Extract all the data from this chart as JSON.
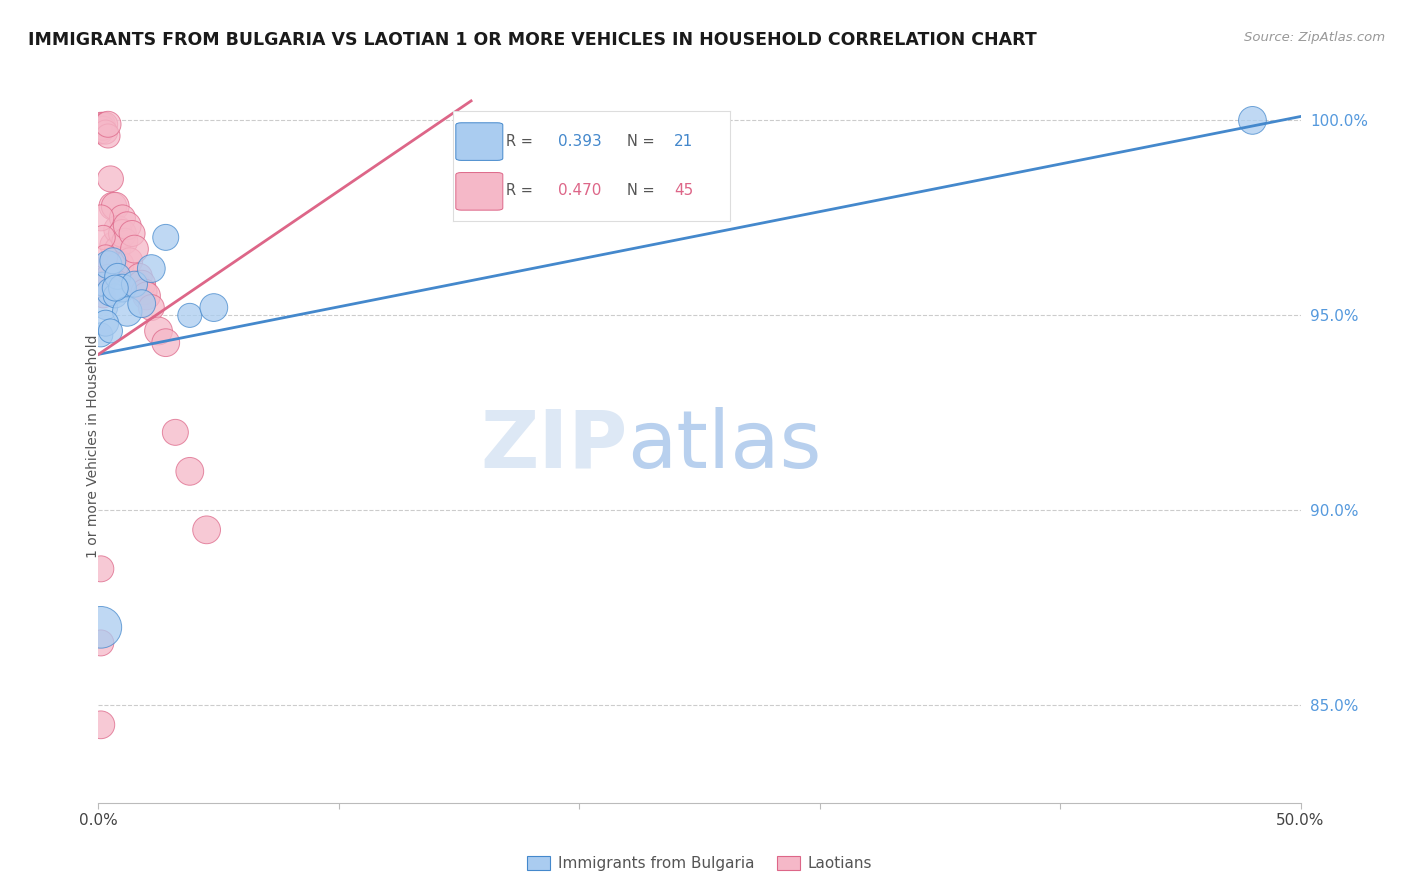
{
  "title": "IMMIGRANTS FROM BULGARIA VS LAOTIAN 1 OR MORE VEHICLES IN HOUSEHOLD CORRELATION CHART",
  "source": "Source: ZipAtlas.com",
  "ylabel": "1 or more Vehicles in Household",
  "xmin": 0.0,
  "xmax": 0.5,
  "ymin": 0.825,
  "ymax": 1.008,
  "blue_R": 0.393,
  "blue_N": 21,
  "pink_R": 0.47,
  "pink_N": 45,
  "blue_color": "#aaccf0",
  "pink_color": "#f5b8c8",
  "blue_line_color": "#4488cc",
  "pink_line_color": "#dd6688",
  "legend_label_blue": "Immigrants from Bulgaria",
  "legend_label_pink": "Laotians",
  "blue_line_x0": 0.0,
  "blue_line_y0": 0.94,
  "blue_line_x1": 0.5,
  "blue_line_y1": 1.001,
  "pink_line_x0": 0.0,
  "pink_line_y0": 0.94,
  "pink_line_x1": 0.155,
  "pink_line_y1": 1.005,
  "blue_scatter_x": [
    0.001,
    0.002,
    0.003,
    0.004,
    0.005,
    0.006,
    0.007,
    0.008,
    0.01,
    0.012,
    0.015,
    0.018,
    0.022,
    0.028,
    0.038,
    0.048,
    0.001,
    0.003,
    0.005,
    0.007,
    0.48
  ],
  "blue_scatter_y": [
    0.945,
    0.958,
    0.952,
    0.963,
    0.956,
    0.964,
    0.955,
    0.96,
    0.957,
    0.951,
    0.958,
    0.953,
    0.962,
    0.97,
    0.95,
    0.952,
    0.87,
    0.948,
    0.946,
    0.957,
    1.0
  ],
  "blue_scatter_size": [
    30,
    30,
    30,
    40,
    40,
    35,
    30,
    35,
    40,
    45,
    35,
    40,
    40,
    35,
    30,
    40,
    90,
    35,
    30,
    35,
    40
  ],
  "pink_scatter_x": [
    0.001,
    0.001,
    0.001,
    0.002,
    0.002,
    0.003,
    0.003,
    0.004,
    0.004,
    0.005,
    0.005,
    0.006,
    0.006,
    0.007,
    0.007,
    0.008,
    0.008,
    0.009,
    0.01,
    0.01,
    0.011,
    0.012,
    0.013,
    0.014,
    0.015,
    0.016,
    0.017,
    0.018,
    0.019,
    0.02,
    0.022,
    0.025,
    0.028,
    0.032,
    0.038,
    0.045,
    0.001,
    0.002,
    0.003,
    0.004,
    0.001,
    0.002,
    0.001,
    0.001,
    0.001
  ],
  "pink_scatter_y": [
    0.999,
    0.998,
    0.997,
    0.999,
    0.998,
    0.999,
    0.997,
    0.996,
    0.999,
    0.985,
    0.963,
    0.978,
    0.968,
    0.978,
    0.964,
    0.972,
    0.967,
    0.963,
    0.975,
    0.971,
    0.969,
    0.973,
    0.964,
    0.971,
    0.967,
    0.958,
    0.96,
    0.958,
    0.956,
    0.955,
    0.952,
    0.946,
    0.943,
    0.92,
    0.91,
    0.895,
    0.975,
    0.97,
    0.965,
    0.96,
    0.958,
    0.955,
    0.885,
    0.866,
    0.845
  ],
  "pink_scatter_size": [
    30,
    30,
    30,
    30,
    30,
    30,
    30,
    30,
    35,
    35,
    40,
    40,
    35,
    40,
    35,
    40,
    35,
    40,
    35,
    40,
    35,
    40,
    35,
    35,
    40,
    35,
    35,
    40,
    35,
    40,
    35,
    40,
    40,
    35,
    40,
    40,
    35,
    30,
    30,
    30,
    30,
    30,
    35,
    35,
    40
  ]
}
